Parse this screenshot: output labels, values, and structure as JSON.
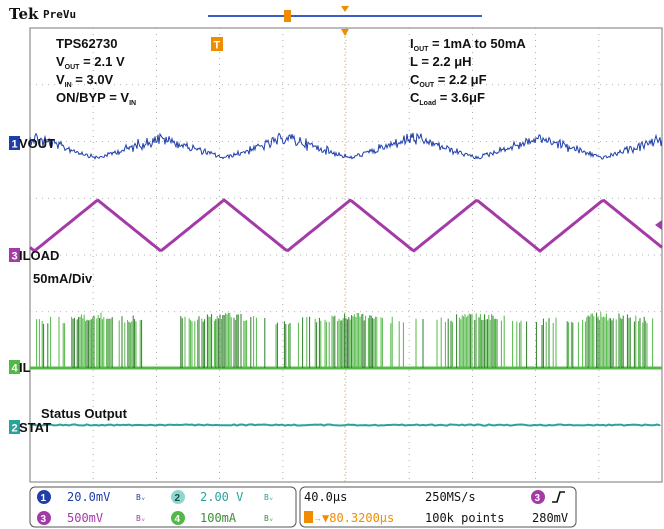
{
  "header": {
    "brand": "Tek",
    "mode": "PreVu"
  },
  "annotations": {
    "device": "TPS62730",
    "vout_sym": "V",
    "vout_sub": "OUT",
    "vout_val": " = 2.1 V",
    "vin_sym": "V",
    "vin_sub": "IN",
    "vin_val": " = 3.0V",
    "onbyp": "ON/BYP = V",
    "onbyp_sub": "IN",
    "iout_sym": "I",
    "iout_sub": "OUT",
    "iout_val": " = 1mA to 50mA",
    "inductor": "L = 2.2 μH",
    "cout_sym": "C",
    "cout_sub": "OUT",
    "cout_val": " = 2.2 μF",
    "cload_sym": "C",
    "cload_sub": "Load",
    "cload_val": " = 3.6μF",
    "scale_note": "50mA/Div",
    "status_note": "Status Output"
  },
  "status_bar": {
    "ch1_num": "1",
    "ch1_scale": "20.0mV",
    "ch1_bw": "Bᵥ",
    "ch2_num": "2",
    "ch2_scale": "2.00 V",
    "ch2_bw": "Bᵥ",
    "ch3_num": "3",
    "ch3_scale": "500mV",
    "ch3_bw": "Bᵥ",
    "ch4_num": "4",
    "ch4_scale": "100mA",
    "ch4_bw": "Bᵥ",
    "timebase": "40.0μs",
    "sample_rate": "250MS/s",
    "trigger_pos": "▼80.3200μs",
    "record_length": "100k points",
    "trigger_ch": "3",
    "trigger_level": "280mV"
  },
  "colors": {
    "ch1": "#1f3fa8",
    "ch2": "#2aa39a",
    "ch3": "#a43aa8",
    "ch4": "#54b848",
    "ch4_dark": "#2f7d2a",
    "trigger": "#f08c00",
    "grid": "#9a9a9a"
  },
  "chart_data": {
    "type": "line",
    "title": "",
    "grid": true,
    "time_per_div_us": 40,
    "divisions": {
      "x": 10,
      "y": 8
    },
    "series": [
      {
        "name": "VOUT",
        "channel": 1,
        "scale": "20.0mV/div",
        "shape": "noisy ripple, dips at load peaks",
        "period_us": 80
      },
      {
        "name": "ILOAD",
        "channel": 3,
        "scale": "500mV/div",
        "shape": "triangle",
        "period_us": 80,
        "range": "1mA to 50mA"
      },
      {
        "name": "IL",
        "channel": 4,
        "scale": "100mA/div",
        "shape": "pulsed inductor current, dense bursts at high load"
      },
      {
        "name": "STAT",
        "channel": 2,
        "scale": "2.00 V/div",
        "shape": "flat, constant low level"
      }
    ]
  }
}
